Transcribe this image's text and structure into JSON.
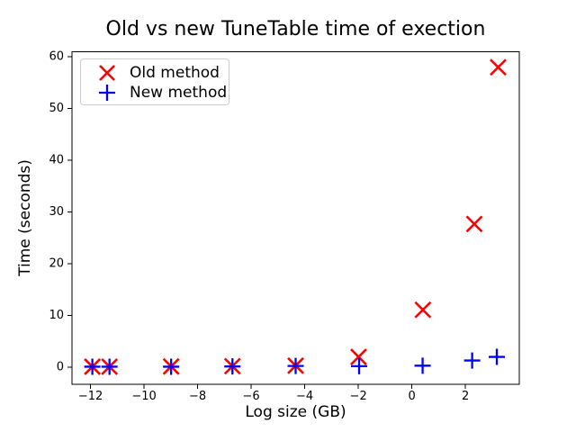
{
  "figure": {
    "background": "#ffffff",
    "axes_color": "#000000"
  },
  "chart_data": {
    "type": "scatter",
    "title": "Old vs new TuneTable time of exection",
    "xlabel": "Log size (GB)",
    "ylabel": "Time (seconds)",
    "xlim": [
      -12.69,
      4.01
    ],
    "ylim": [
      -3.3,
      61.0
    ],
    "grid": false,
    "xticks": {
      "values": [
        -12,
        -10,
        -8,
        -6,
        -4,
        -2,
        0,
        2
      ],
      "labels": [
        "−12",
        "−10",
        "−8",
        "−6",
        "−4",
        "−2",
        "0",
        "2"
      ]
    },
    "yticks": {
      "values": [
        0,
        10,
        20,
        30,
        40,
        50,
        60
      ],
      "labels": [
        "0",
        "10",
        "20",
        "30",
        "40",
        "50",
        "60"
      ]
    },
    "legend": {
      "position": "upper-left",
      "entries": [
        {
          "label": "Old method",
          "marker": "x",
          "color": "#ff0000"
        },
        {
          "label": "New method",
          "marker": "+",
          "color": "#0000ff"
        }
      ]
    },
    "series": [
      {
        "name": "Old method",
        "marker": "x",
        "color": "#ff0000",
        "points": [
          [
            -11.93,
            0.1
          ],
          [
            -11.29,
            0.1
          ],
          [
            -8.99,
            0.15
          ],
          [
            -6.7,
            0.2
          ],
          [
            -4.34,
            0.3
          ],
          [
            -1.99,
            2.0
          ],
          [
            0.41,
            11.1
          ],
          [
            2.33,
            27.7
          ],
          [
            3.22,
            58.0
          ]
        ]
      },
      {
        "name": "New method",
        "marker": "+",
        "color": "#0000ff",
        "points": [
          [
            -11.93,
            0.1
          ],
          [
            -11.29,
            0.1
          ],
          [
            -8.99,
            0.1
          ],
          [
            -6.7,
            0.15
          ],
          [
            -4.34,
            0.25
          ],
          [
            -1.97,
            0.2
          ],
          [
            0.4,
            0.3
          ],
          [
            2.25,
            1.3
          ],
          [
            3.17,
            2.0
          ]
        ]
      }
    ]
  }
}
